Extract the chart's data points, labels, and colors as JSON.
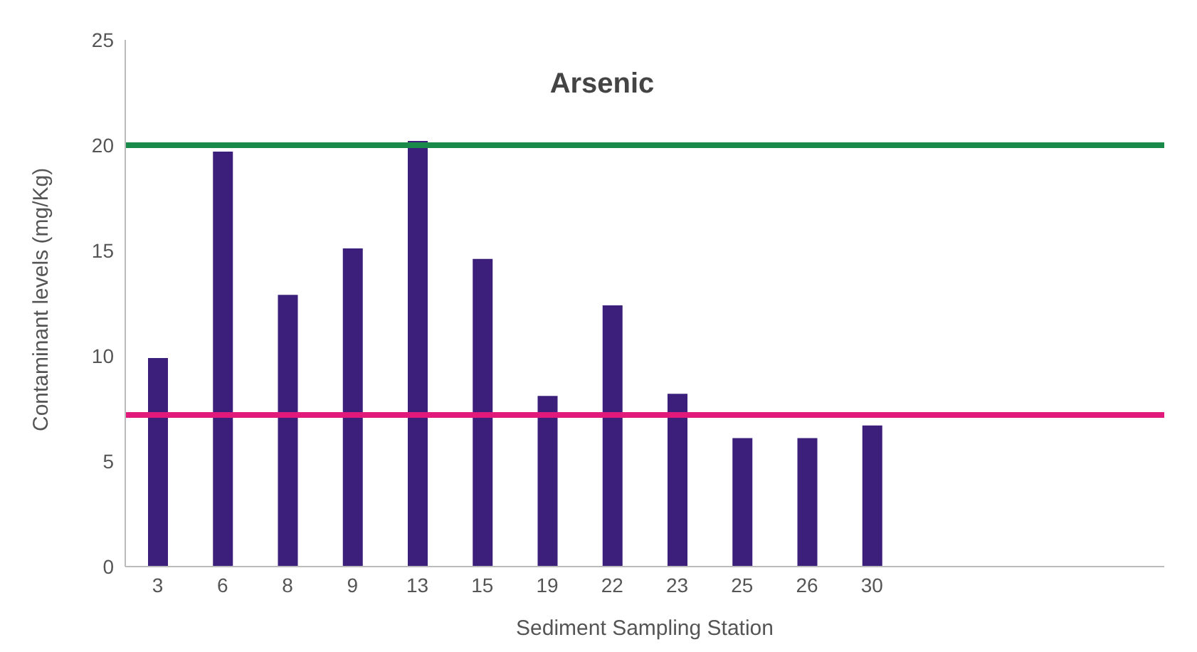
{
  "chart_data": {
    "type": "bar",
    "title": "Arsenic",
    "xlabel": "Sediment Sampling Station",
    "ylabel": "Contaminant levels (mg/Kg)",
    "categories": [
      "3",
      "6",
      "8",
      "9",
      "13",
      "15",
      "19",
      "22",
      "23",
      "25",
      "26",
      "30",
      null,
      null,
      null,
      null
    ],
    "values": [
      9.9,
      19.7,
      12.9,
      15.1,
      20.2,
      14.6,
      8.1,
      12.4,
      8.2,
      6.1,
      6.1,
      6.7,
      null,
      null,
      null,
      null
    ],
    "color": "#3b1f7a",
    "ylim": [
      0,
      25
    ],
    "yticks": [
      0,
      5,
      10,
      15,
      20,
      25
    ],
    "grid": false,
    "legend": false,
    "ref_lines": [
      {
        "axis": "y",
        "value": 20,
        "color": "#1a8a4a"
      },
      {
        "axis": "y",
        "value": 7.2,
        "color": "#e0197a"
      }
    ]
  }
}
